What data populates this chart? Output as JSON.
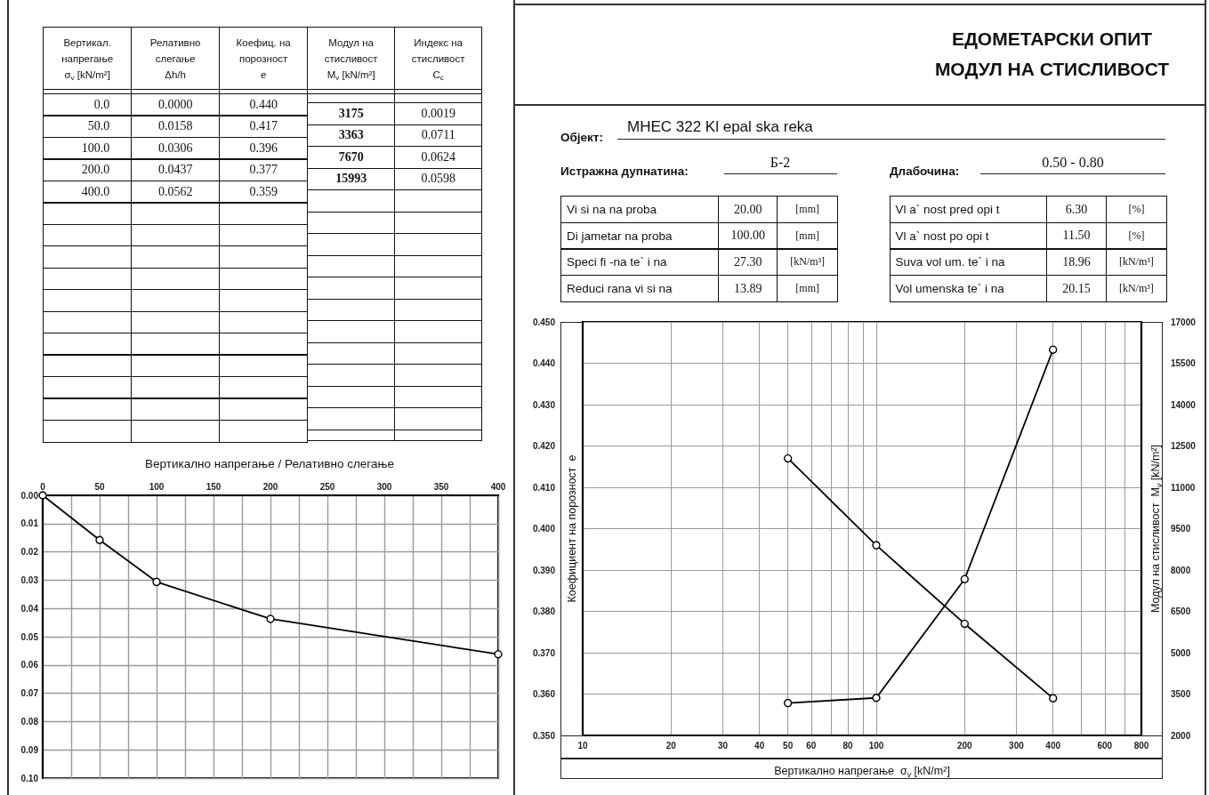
{
  "chart_data": [
    {
      "type": "other",
      "annotations": [
        "Вертикал.\nнапрегање\nσ$_{v}$ [kN/m²]",
        "Релативно\nслегање\nΔh/h",
        "Коефиц. на\nпорозност\ne",
        "Модул на\nстисливост\nM$_{v}$ [kN/m²]",
        "Индекс на\nстисливост\nC$_{c}$",
        "0.0",
        "0.0000",
        "0.440",
        "50.0",
        "0.0158",
        "0.417",
        "100.0",
        "0.0306",
        "0.396",
        "200.0",
        "0.0437",
        "0.377",
        "400.0",
        "0.0562",
        "0.359",
        "3175",
        "0.0019",
        "3363",
        "0.0711",
        "7670",
        "0.0624",
        "15993",
        "0.0598"
      ]
    },
    {
      "type": "other",
      "title": "ЕДОМЕТАРСКИ ОПИТ\nМОДУЛ НА СТИСЛИВОСТ",
      "annotations": [
        "Објект:",
        "МНЕС 322 Kl epal ska reka",
        "Истражна дупнатина:",
        "Б-2",
        "Длабочина:",
        "0.50 - 0.80",
        "Vi si na na proba",
        "20.00",
        "[mm]",
        "Di jametar na proba",
        "100.00",
        "[mm]",
        "Speci fi -na te` i na",
        "27.30",
        "[kN/m³]",
        "Reduci rana vi si na",
        "13.89",
        "[mm]",
        "Vl a` nost pred opi t",
        "6.30",
        "[%]",
        "Vl a` nost po opi t",
        "11.50",
        "[%]",
        "Suva vol um. te` i na",
        "18.96",
        "[kN/m³]",
        "Vol umenska te` i na",
        "20.15",
        "[kN/m³]"
      ]
    },
    {
      "type": "line",
      "title": "Вертикално напрегање / Релативно слегање",
      "x": [
        0,
        50,
        100,
        200,
        400
      ],
      "values": [
        0,
        0.0158,
        0.0306,
        0.0437,
        0.0562
      ],
      "color": "#000000",
      "marker": "circle",
      "xlim": [
        0,
        400
      ],
      "xticks": [
        0,
        {
          "value": 25,
          "label": null
        },
        50,
        {
          "value": 75,
          "label": null
        },
        100,
        {
          "value": 125,
          "label": null
        },
        150,
        {
          "value": 175,
          "label": null
        },
        200,
        {
          "value": 225,
          "label": null
        },
        250,
        {
          "value": 275,
          "label": null
        },
        300,
        {
          "value": 325,
          "label": null
        },
        350,
        {
          "value": 375,
          "label": null
        },
        400
      ],
      "ylim": [
        0.1,
        0
      ],
      "yticks": [
        {
          "value": 0,
          "label": "0.00"
        },
        0.01,
        0.02,
        0.03,
        0.04,
        0.05,
        0.06,
        0.07,
        0.08,
        0.09,
        {
          "value": 0.1,
          "label": "0.10"
        }
      ],
      "grid": true
    },
    {
      "type": "line",
      "x": [
        50,
        100,
        200,
        400
      ],
      "series": [
        {
          "color": "#000000",
          "values": [
            0.417,
            0.396,
            0.377,
            0.359
          ]
        },
        {
          "color": "#000000",
          "values": [
            3175,
            3363,
            7670,
            15993
          ],
          "axis": "y2"
        }
      ],
      "marker": "circle",
      "xlabel": "Вертикално напрегање  σ$_{v}$ [kN/m²]",
      "ylabel": "Коефициент на порозност  e",
      "y2label": "Модул на стисливост  M$_{v}$ [kN/m²]",
      "log": "x",
      "xlim": [
        10,
        800
      ],
      "xticks": [
        10,
        20,
        30,
        40,
        50,
        60,
        {
          "value": 70,
          "label": null
        },
        80,
        {
          "value": 90,
          "label": null
        },
        100,
        200,
        300,
        400,
        {
          "value": 500,
          "label": null
        },
        600,
        {
          "value": 700,
          "label": null
        },
        800
      ],
      "ylim": [
        0.35,
        0.45
      ],
      "yticks": [
        {
          "value": 0.35,
          "label": "0.350"
        },
        {
          "value": 0.36,
          "label": "0.360"
        },
        {
          "value": 0.37,
          "label": "0.370"
        },
        {
          "value": 0.38,
          "label": "0.380"
        },
        {
          "value": 0.39,
          "label": "0.390"
        },
        {
          "value": 0.4,
          "label": "0.400"
        },
        {
          "value": 0.41,
          "label": "0.410"
        },
        {
          "value": 0.42,
          "label": "0.420"
        },
        {
          "value": 0.43,
          "label": "0.430"
        },
        {
          "value": 0.44,
          "label": "0.440"
        },
        {
          "value": 0.45,
          "label": "0.450"
        }
      ],
      "y2lim": [
        2000,
        17000
      ],
      "y2ticks": [
        2000,
        3500,
        5000,
        6500,
        8000,
        9500,
        11000,
        12500,
        14000,
        15500,
        17000
      ],
      "grid": true
    }
  ]
}
